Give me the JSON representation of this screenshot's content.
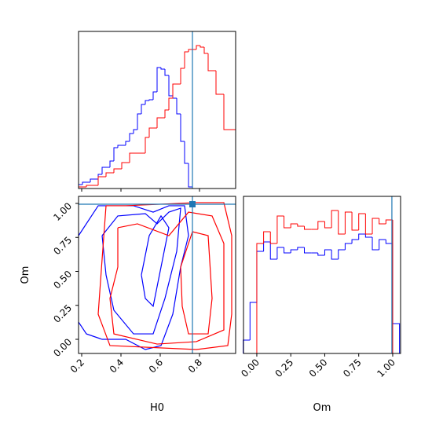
{
  "chart_data": [
    {
      "type": "step-histogram",
      "bins": [
        0.184,
        0.204,
        0.224,
        0.244,
        0.264,
        0.284,
        0.304,
        0.324,
        0.344,
        0.364,
        0.384,
        0.404,
        0.424,
        0.444,
        0.464,
        0.484,
        0.504,
        0.524,
        0.544,
        0.564,
        0.584,
        0.604,
        0.624,
        0.644,
        0.664,
        0.684,
        0.704,
        0.724,
        0.744,
        0.764,
        0.784,
        0.804,
        0.824,
        0.844,
        0.864,
        0.884,
        0.904,
        0.924,
        0.944,
        0.964,
        0.984
      ],
      "series": [
        {
          "color": "#0000ff",
          "values": [
            2.5,
            4,
            4,
            6,
            6,
            9,
            13.5,
            13.5,
            17.5,
            26,
            27.5,
            27.5,
            30,
            35,
            37.5,
            47.5,
            53.5,
            56,
            56.5,
            61.5,
            77,
            76,
            72,
            59,
            57.5,
            47.5,
            30,
            16,
            1,
            0,
            0,
            0,
            0,
            0,
            0,
            0,
            0,
            0,
            0,
            0
          ]
        },
        {
          "color": "#ff0000",
          "values": [
            1,
            1,
            2,
            2,
            2,
            7.5,
            7.5,
            10,
            10,
            12.5,
            12.5,
            16.5,
            16.5,
            22.5,
            22.5,
            22.5,
            22.5,
            32.5,
            38.5,
            38.5,
            45,
            45,
            50,
            57.5,
            66.5,
            66.5,
            76.5,
            87,
            88.5,
            88.5,
            91,
            90,
            86,
            75,
            75,
            60,
            60,
            37.5,
            37.5,
            37.5
          ]
        }
      ],
      "xlim": [
        0.184,
        0.984
      ],
      "xticks": [
        0.2,
        0.4,
        0.6,
        0.8
      ],
      "ylim": [
        0,
        100
      ],
      "truth": 0.764,
      "truth_color": "#1f77b4"
    },
    {
      "type": "contour",
      "xlabel": "H0",
      "ylabel": "Om",
      "xlim": [
        0.184,
        0.984
      ],
      "ylim": [
        -0.104,
        1.052
      ],
      "xticks": [
        0.2,
        0.4,
        0.6,
        0.8
      ],
      "yticks": [
        {
          "value": 0,
          "label": "0.00"
        },
        {
          "value": 0.25,
          "label": "0.25"
        },
        {
          "value": 0.5,
          "label": "0.50"
        },
        {
          "value": 0.75,
          "label": "0.75"
        },
        {
          "value": 1,
          "label": "1.00"
        }
      ],
      "series": [
        {
          "color": "#0000ff",
          "contours": [
            {
              "x": [
                0.184,
                0.284,
                0.464,
                0.564,
                0.644,
                0.724,
                0.744,
                0.704,
                0.664,
                0.604,
                0.524,
                0.424,
                0.304,
                0.224,
                0.184
              ],
              "y": [
                0.763,
                0.983,
                0.983,
                0.936,
                0.983,
                0.983,
                0.763,
                0.532,
                0.185,
                -0.046,
                -0.075,
                0,
                0,
                0.04,
                0.127
              ]
            },
            {
              "x": [
                0.304,
                0.384,
                0.524,
                0.584,
                0.644,
                0.704,
                0.684,
                0.624,
                0.564,
                0.464,
                0.364,
                0.324,
                0.304
              ],
              "y": [
                0.763,
                0.908,
                0.925,
                0.85,
                0.936,
                0.965,
                0.647,
                0.301,
                0.04,
                0.04,
                0.214,
                0.474,
                0.763
              ]
            },
            {
              "x": [
                0.504,
                0.544,
                0.604,
                0.644,
                0.604,
                0.564,
                0.524,
                0.504
              ],
              "y": [
                0.474,
                0.763,
                0.908,
                0.821,
                0.532,
                0.243,
                0.301,
                0.474
              ]
            }
          ]
        },
        {
          "color": "#ff0000",
          "contours": [
            {
              "x": [
                0.324,
                0.424,
                0.784,
                0.924,
                0.964,
                0.964,
                0.944,
                0.784,
                0.344,
                0.284,
                0.304,
                0.324
              ],
              "y": [
                0.983,
                0.983,
                1.006,
                1.006,
                0.763,
                0.185,
                -0.046,
                -0.075,
                -0.046,
                0.185,
                0.59,
                0.983
              ]
            },
            {
              "x": [
                0.384,
                0.484,
                0.644,
                0.744,
                0.864,
                0.924,
                0.924,
                0.784,
                0.584,
                0.364,
                0.344,
                0.384,
                0.384
              ],
              "y": [
                0.821,
                0.85,
                0.763,
                0.936,
                0.908,
                0.705,
                0.069,
                -0.017,
                -0.035,
                0.04,
                0.301,
                0.532,
                0.821
              ]
            },
            {
              "x": [
                0.704,
                0.764,
                0.844,
                0.864,
                0.844,
                0.744,
                0.712,
                0.704
              ],
              "y": [
                0.532,
                0.792,
                0.763,
                0.301,
                0.04,
                0.04,
                0.243,
                0.532
              ]
            }
          ]
        }
      ],
      "truth": [
        0.764,
        0.994
      ],
      "truth_color": "#1f77b4"
    },
    {
      "type": "step-histogram",
      "xlabel": "Om",
      "bins": [
        -0.1,
        -0.05,
        0,
        0.05,
        0.1,
        0.15,
        0.2,
        0.25,
        0.3,
        0.35,
        0.4,
        0.45,
        0.5,
        0.55,
        0.6,
        0.65,
        0.7,
        0.75,
        0.8,
        0.85,
        0.9,
        0.95,
        1,
        1.05
      ],
      "series": [
        {
          "color": "#0000ff",
          "values": [
            8.5,
            32.5,
            65,
            71,
            60,
            67.5,
            64,
            66,
            67.5,
            64,
            64,
            62.5,
            66,
            60,
            66,
            70,
            72.5,
            76,
            74,
            66,
            72.5,
            70,
            19
          ]
        },
        {
          "color": "#ff0000",
          "values": [
            0,
            0,
            70,
            77.5,
            70,
            87.5,
            80,
            82.5,
            81,
            79,
            79,
            84,
            80,
            91,
            76,
            90,
            78.5,
            89,
            76,
            86,
            82.5,
            85,
            0
          ]
        }
      ],
      "xlim": [
        -0.098,
        1.058
      ],
      "xticks": [
        {
          "value": 0,
          "label": "0.00"
        },
        {
          "value": 0.25,
          "label": "0.25"
        },
        {
          "value": 0.5,
          "label": "0.50"
        },
        {
          "value": 0.75,
          "label": "0.75"
        },
        {
          "value": 1,
          "label": "1.00"
        }
      ],
      "ylim": [
        0,
        100
      ],
      "truth": 0.994,
      "truth_color": "#1f77b4"
    }
  ]
}
